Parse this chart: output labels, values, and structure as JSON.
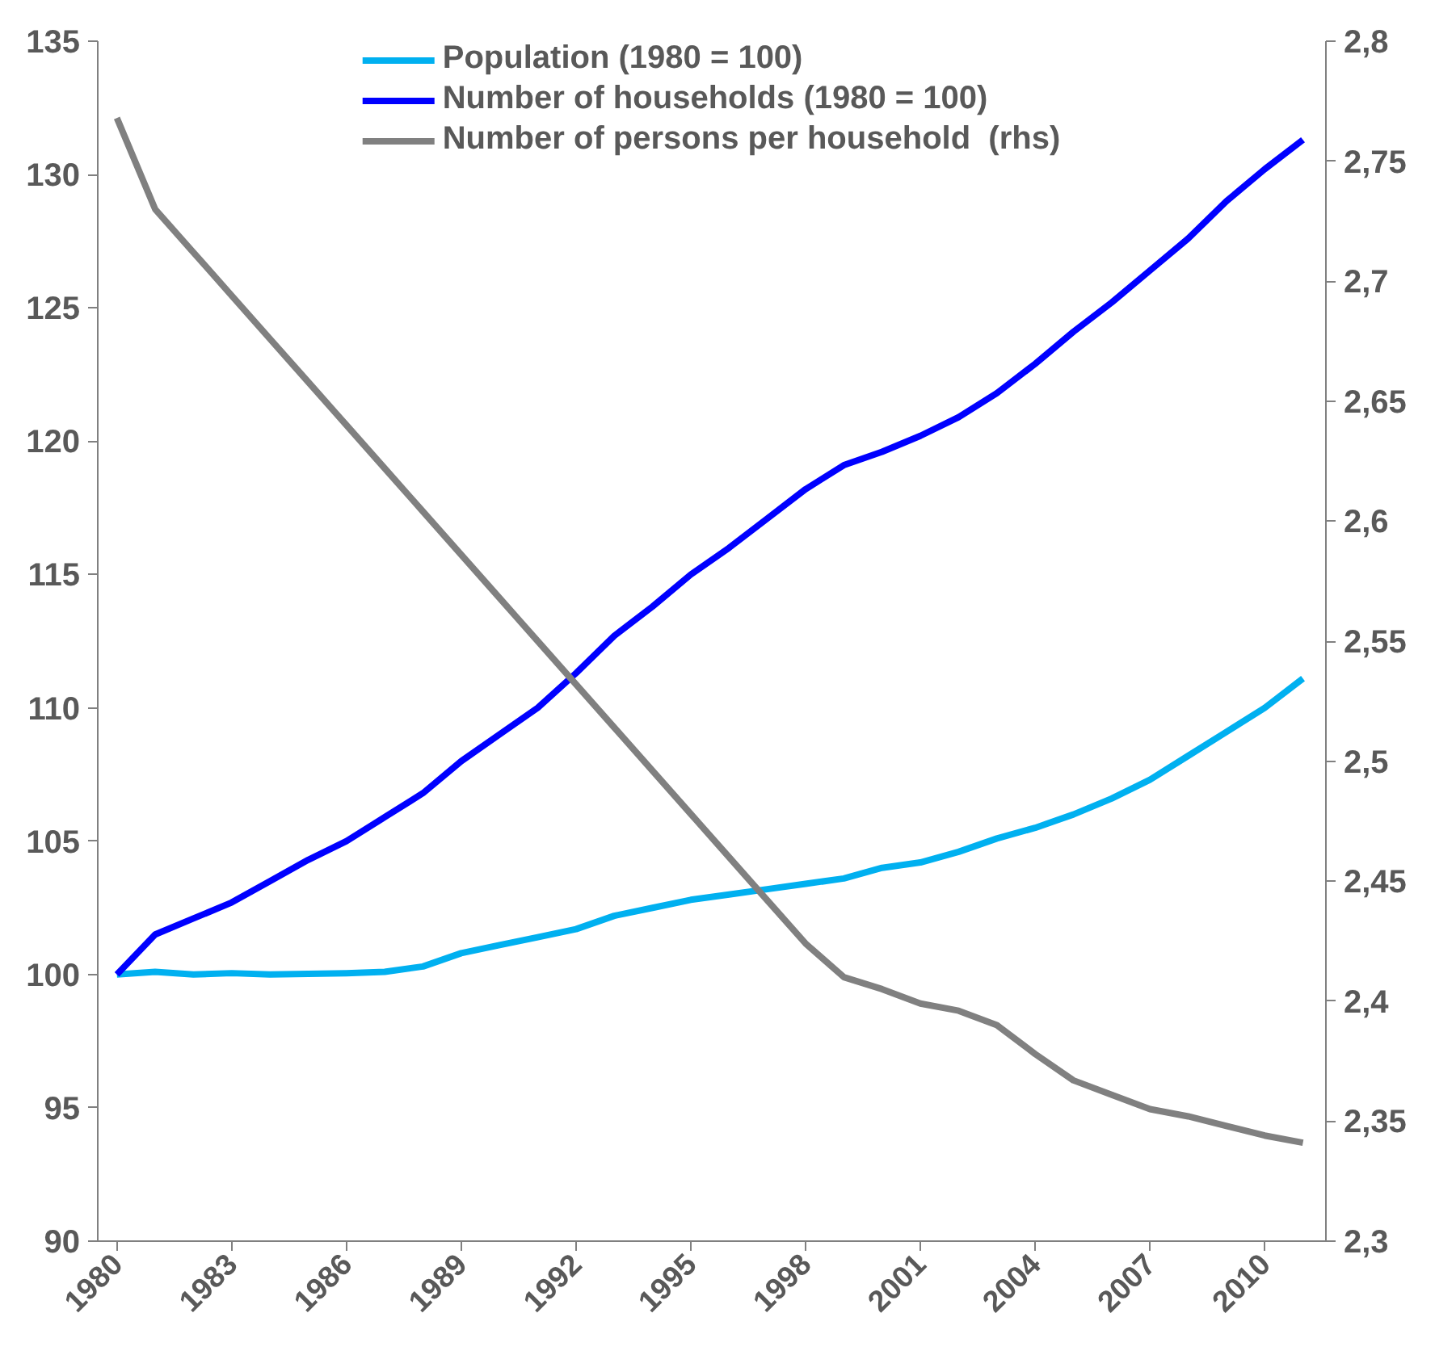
{
  "chart_data": {
    "type": "line",
    "x": [
      1980,
      1981,
      1982,
      1983,
      1984,
      1985,
      1986,
      1987,
      1988,
      1989,
      1990,
      1991,
      1992,
      1993,
      1994,
      1995,
      1996,
      1997,
      1998,
      1999,
      2000,
      2001,
      2002,
      2003,
      2004,
      2005,
      2006,
      2007,
      2008,
      2009,
      2010,
      2011
    ],
    "xlim": [
      1979.5,
      2011.6
    ],
    "xticks": [
      1980,
      1983,
      1986,
      1989,
      1992,
      1995,
      1998,
      2001,
      2004,
      2007,
      2010
    ],
    "ylim": [
      90,
      135
    ],
    "yticks": [
      90,
      95,
      100,
      105,
      110,
      115,
      120,
      125,
      130,
      135
    ],
    "y2lim": [
      2.3,
      2.8
    ],
    "y2ticks": [
      {
        "value": 2.3,
        "label": "2,3"
      },
      {
        "value": 2.35,
        "label": "2,35"
      },
      {
        "value": 2.4,
        "label": "2,4"
      },
      {
        "value": 2.45,
        "label": "2,45"
      },
      {
        "value": 2.5,
        "label": "2,5"
      },
      {
        "value": 2.55,
        "label": "2,55"
      },
      {
        "value": 2.6,
        "label": "2,6"
      },
      {
        "value": 2.65,
        "label": "2,65"
      },
      {
        "value": 2.7,
        "label": "2,7"
      },
      {
        "value": 2.75,
        "label": "2,75"
      },
      {
        "value": 2.8,
        "label": "2,8"
      }
    ],
    "series": [
      {
        "name": "Population (1980 = 100)",
        "color": "#00b0f0",
        "values": [
          100,
          100.1,
          100,
          100.05,
          100,
          100.02,
          100.05,
          100.1,
          100.3,
          100.8,
          101.1,
          101.4,
          101.7,
          102.2,
          102.5,
          102.8,
          103.0,
          103.2,
          103.4,
          103.6,
          104.0,
          104.2,
          104.6,
          105.1,
          105.5,
          106.0,
          106.6,
          107.3,
          108.2,
          109.1,
          110.0,
          111.1
        ]
      },
      {
        "name": "Number of households (1980 = 100)",
        "color": "#0000ff",
        "values": [
          100,
          101.5,
          102.1,
          102.7,
          103.5,
          104.3,
          105.0,
          105.9,
          106.8,
          108.0,
          109.0,
          110.0,
          111.3,
          112.7,
          113.8,
          115.0,
          116.0,
          117.1,
          118.2,
          119.1,
          119.6,
          120.2,
          120.9,
          121.8,
          122.9,
          124.1,
          125.2,
          126.4,
          127.6,
          129.0,
          130.2,
          131.3
        ]
      },
      {
        "name": "Number of persons per household  (rhs)",
        "color": "#808080",
        "axis": "y2",
        "values": [
          2.768,
          2.73,
          2.712,
          2.694,
          2.676,
          2.658,
          2.64,
          2.622,
          2.604,
          2.586,
          2.568,
          2.55,
          2.532,
          2.514,
          2.496,
          2.478,
          2.46,
          2.442,
          2.424,
          2.41,
          2.405,
          2.399,
          2.396,
          2.39,
          2.378,
          2.367,
          2.361,
          2.355,
          2.352,
          2.348,
          2.344,
          2.341
        ]
      }
    ],
    "grid": false,
    "legend": "top",
    "marker": "none",
    "line_style": "solid"
  }
}
